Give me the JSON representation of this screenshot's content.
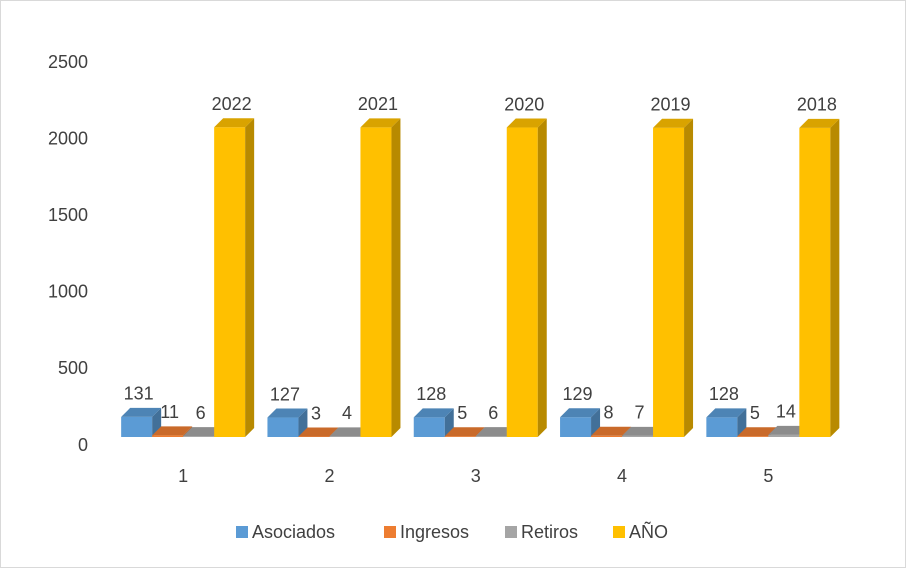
{
  "chart_data": {
    "type": "bar3d",
    "categories": [
      "1",
      "2",
      "3",
      "4",
      "5"
    ],
    "series": [
      {
        "name": "Asociados",
        "color": "#5b9bd5",
        "values": [
          131,
          127,
          128,
          129,
          128
        ]
      },
      {
        "name": "Ingresos",
        "color": "#ed7d31",
        "values": [
          11,
          3,
          5,
          8,
          5
        ]
      },
      {
        "name": "Retiros",
        "color": "#a5a5a5",
        "values": [
          6,
          4,
          6,
          7,
          14
        ]
      },
      {
        "name": "AÑO",
        "color": "#ffc000",
        "values": [
          2022,
          2021,
          2020,
          2019,
          2018
        ]
      }
    ],
    "ylim": [
      0,
      2500
    ],
    "yticks": [
      0,
      500,
      1000,
      1500,
      2000,
      2500
    ],
    "legend": "bottom",
    "grid": false
  }
}
